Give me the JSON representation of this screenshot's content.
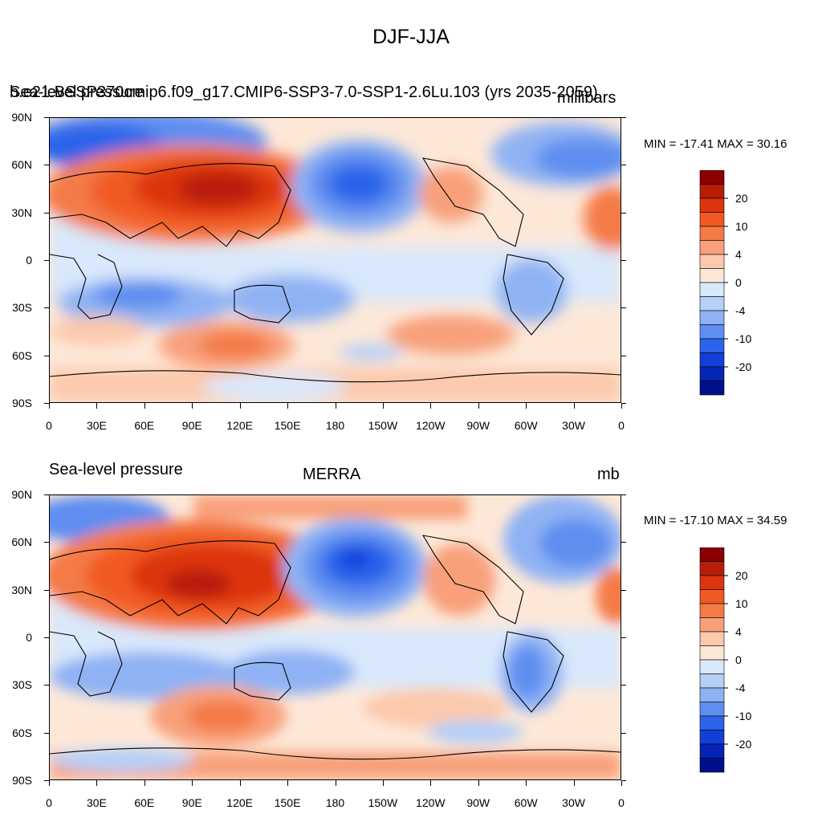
{
  "figure_title": "DJF-JJA",
  "y_tick_labels": [
    "90N",
    "60N",
    "30N",
    "0",
    "30S",
    "60S",
    "90S"
  ],
  "x_tick_labels": [
    "0",
    "30E",
    "60E",
    "90E",
    "120E",
    "150E",
    "180",
    "150W",
    "120W",
    "90W",
    "60W",
    "30W",
    "0"
  ],
  "colorbar_labels": [
    "20",
    "10",
    "4",
    "0",
    "-4",
    "-10",
    "-20"
  ],
  "colorbar_colors": [
    "#8b0000",
    "#b81d08",
    "#dc3510",
    "#f05a22",
    "#f47a46",
    "#f8a07a",
    "#fcc9ac",
    "#fde8d8",
    "#d9e8fb",
    "#b6cff7",
    "#8fb2f4",
    "#5e8ef0",
    "#2c63ea",
    "#1040d8",
    "#0524b4",
    "#00108c"
  ],
  "panels": [
    {
      "id": "model",
      "case_label": "b.e21.BSSP370cmip6.f09_g17.CMIP6-SSP3-7.0-SSP1-2.6Lu.103 (yrs 2035-2059)",
      "variable_label": "Sea-level pressure",
      "units": "millibars",
      "min_max": "MIN = -17.41 MAX =  30.16"
    },
    {
      "id": "obs",
      "variable_label": "Sea-level pressure",
      "center_label": "MERRA",
      "units": "mb",
      "min_max": "MIN = -17.10 MAX =  34.59"
    }
  ]
}
